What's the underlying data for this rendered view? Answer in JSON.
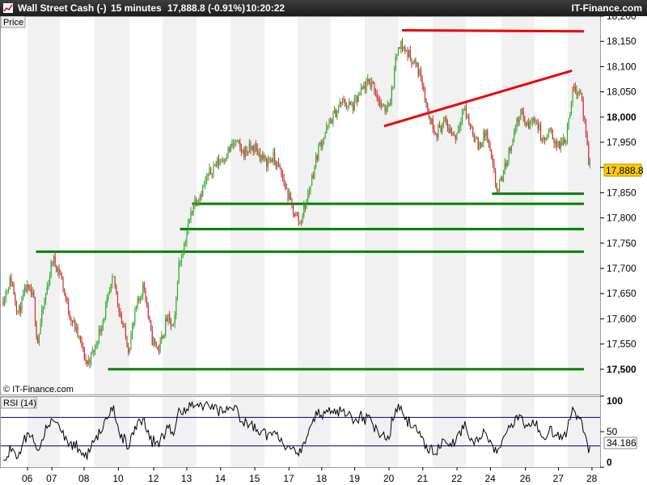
{
  "header": {
    "instrument": "Wall Street Cash (-)",
    "timeframe": "15 minutes",
    "last": "17,888.8 (-0.91%)",
    "time": "10:20:22",
    "brand": "IT-Finance.com"
  },
  "price_panel": {
    "label": "Price",
    "watermark": "© IT-Finance.com"
  },
  "rsi_panel": {
    "label": "RSI (14)"
  },
  "colors": {
    "support": "#008000",
    "resistance": "#ee0000",
    "up": "#33aa33",
    "down": "#cc3333",
    "rsi_line": "#000000",
    "rsi_band": "#000080",
    "last_badge": "#ffcc00"
  },
  "chart_data": [
    {
      "type": "line",
      "panel": "price",
      "ylim": [
        17450,
        18200
      ],
      "y_ticks": [
        "18,200",
        "18,150",
        "18,100",
        "18,050",
        "18,000",
        "17,950",
        "17,900",
        "17,850",
        "17,800",
        "17,750",
        "17,700",
        "17,650",
        "17,600",
        "17,550",
        "17,500"
      ],
      "bold_ticks": [
        "18,000",
        "17,500"
      ],
      "x_labels": [
        "06",
        "07",
        "08",
        "10",
        "12",
        "13",
        "14",
        "15",
        "17",
        "18",
        "19",
        "20",
        "21",
        "22",
        "24",
        "26",
        "27",
        "28"
      ],
      "last_value_label": "17,888.8",
      "price_path": [
        [
          0,
          17640
        ],
        [
          0.02,
          17680
        ],
        [
          0.04,
          17610
        ],
        [
          0.06,
          17660
        ],
        [
          0.08,
          17640
        ],
        [
          0.09,
          17550
        ],
        [
          0.1,
          17600
        ],
        [
          0.13,
          17720
        ],
        [
          0.15,
          17690
        ],
        [
          0.17,
          17620
        ],
        [
          0.2,
          17560
        ],
        [
          0.22,
          17510
        ],
        [
          0.24,
          17540
        ],
        [
          0.27,
          17620
        ],
        [
          0.29,
          17680
        ],
        [
          0.31,
          17600
        ],
        [
          0.33,
          17540
        ],
        [
          0.35,
          17620
        ],
        [
          0.37,
          17670
        ],
        [
          0.39,
          17560
        ],
        [
          0.41,
          17540
        ],
        [
          0.43,
          17600
        ],
        [
          0.45,
          17580
        ],
        [
          0.46,
          17700
        ],
        [
          0.48,
          17760
        ],
        [
          0.5,
          17830
        ],
        [
          0.52,
          17850
        ],
        [
          0.55,
          17900
        ],
        [
          0.58,
          17920
        ],
        [
          0.61,
          17950
        ],
        [
          0.63,
          17930
        ],
        [
          0.66,
          17940
        ],
        [
          0.69,
          17910
        ],
        [
          0.71,
          17920
        ],
        [
          0.73,
          17890
        ],
        [
          0.76,
          17820
        ],
        [
          0.78,
          17790
        ],
        [
          0.8,
          17840
        ],
        [
          0.83,
          17940
        ],
        [
          0.86,
          17990
        ],
        [
          0.89,
          18030
        ],
        [
          0.92,
          18020
        ],
        [
          0.95,
          18060
        ],
        [
          0.97,
          18070
        ],
        [
          1.0,
          18010
        ],
        [
          1.02,
          18040
        ],
        [
          1.04,
          18150
        ],
        [
          1.06,
          18130
        ],
        [
          1.08,
          18110
        ],
        [
          1.1,
          18080
        ],
        [
          1.12,
          18000
        ],
        [
          1.14,
          17970
        ],
        [
          1.16,
          17990
        ],
        [
          1.19,
          17960
        ],
        [
          1.21,
          18020
        ],
        [
          1.23,
          17980
        ],
        [
          1.25,
          17940
        ],
        [
          1.27,
          17970
        ],
        [
          1.3,
          17850
        ],
        [
          1.32,
          17900
        ],
        [
          1.34,
          17960
        ],
        [
          1.36,
          18010
        ],
        [
          1.38,
          17980
        ],
        [
          1.4,
          18000
        ],
        [
          1.42,
          17950
        ],
        [
          1.44,
          17970
        ],
        [
          1.46,
          17940
        ],
        [
          1.48,
          17960
        ],
        [
          1.5,
          18060
        ],
        [
          1.52,
          18050
        ],
        [
          1.54,
          17910
        ],
        [
          1.56,
          17890
        ]
      ],
      "support_lines": [
        {
          "x1": 18,
          "x2": 100,
          "y": 17500
        },
        {
          "x1": 6,
          "x2": 100,
          "y": 17733
        },
        {
          "x1": 30,
          "x2": 100,
          "y": 17778
        },
        {
          "x1": 32,
          "x2": 100,
          "y": 17828
        },
        {
          "x1": 82,
          "x2": 100,
          "y": 17848
        }
      ],
      "resistance_lines": [
        {
          "x1": 67,
          "x2": 100,
          "y1": 18172,
          "y2": 18170
        },
        {
          "x1": 64,
          "x2": 98,
          "y1": 17982,
          "y2": 18092
        }
      ]
    },
    {
      "type": "line",
      "panel": "rsi",
      "series": [
        {
          "name": "RSI (14)"
        }
      ],
      "ylim": [
        0,
        100
      ],
      "y_ticks": [
        "100",
        "50",
        "0"
      ],
      "bands": [
        70,
        30
      ],
      "last_value_label": "34.186"
    }
  ]
}
